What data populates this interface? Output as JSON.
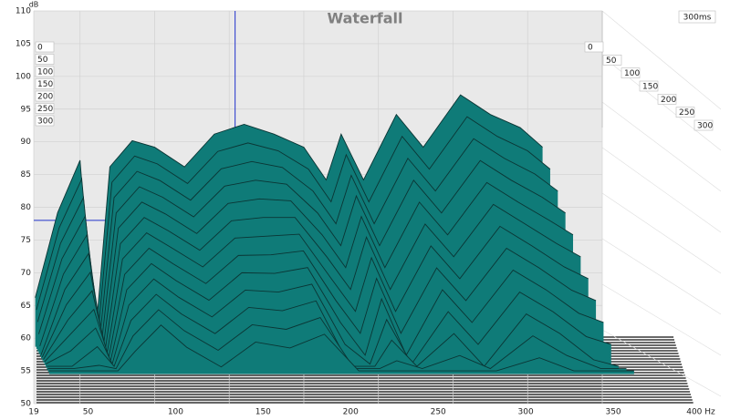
{
  "chart_data": {
    "type": "waterfall",
    "title": "Waterfall",
    "y_label": "dB",
    "time_range_label": "300ms",
    "x": [
      20,
      35,
      50,
      60,
      70,
      85,
      100,
      120,
      140,
      160,
      180,
      200,
      215,
      225,
      240,
      262,
      280,
      305,
      325,
      345,
      360
    ],
    "slices": [
      {
        "time": 0,
        "values": [
          62,
          75,
          83,
          55,
          82,
          86,
          85,
          82,
          87,
          88.5,
          87,
          85,
          80,
          87,
          80,
          90,
          85,
          93,
          90,
          88,
          85
        ]
      },
      {
        "time": 25,
        "values": [
          60.5,
          73,
          80.5,
          55,
          80,
          84,
          82.8,
          79.8,
          84.7,
          86,
          84.8,
          82,
          77,
          84.2,
          77,
          87,
          82,
          90,
          87,
          84.8,
          82
        ]
      },
      {
        "time": 50,
        "values": [
          59,
          71,
          78,
          55,
          78,
          82,
          80.6,
          77.6,
          82.4,
          83.5,
          82.6,
          79,
          74,
          81.4,
          74,
          84,
          79,
          87,
          84,
          81.6,
          79
        ]
      },
      {
        "time": 75,
        "values": [
          57.5,
          69,
          75.5,
          55,
          76,
          80,
          78.4,
          75.4,
          80.1,
          81,
          80.4,
          76,
          71,
          78.6,
          71,
          81,
          76,
          84,
          81,
          78.4,
          76
        ]
      },
      {
        "time": 100,
        "values": [
          56,
          67,
          73,
          55,
          74,
          78,
          76.2,
          73.2,
          77.8,
          78.5,
          78.2,
          73,
          68,
          75.8,
          68,
          78,
          73,
          81,
          78,
          75.2,
          73
        ]
      },
      {
        "time": 125,
        "values": [
          55,
          65,
          70.5,
          55,
          72,
          76,
          74,
          71,
          75.5,
          76,
          76,
          70,
          65,
          73,
          65,
          75,
          70,
          78,
          75,
          72,
          70
        ]
      },
      {
        "time": 150,
        "values": [
          55,
          63,
          68,
          55,
          70,
          74,
          71.8,
          68.8,
          73.2,
          73.5,
          73.8,
          67,
          62,
          70.2,
          62,
          72,
          67,
          75,
          72,
          68.8,
          67
        ]
      },
      {
        "time": 175,
        "values": [
          55,
          61,
          65.5,
          55,
          68,
          72,
          69.6,
          66.6,
          70.9,
          71,
          71.6,
          64,
          59,
          67.4,
          59,
          69,
          64,
          72,
          69,
          65.6,
          64
        ]
      },
      {
        "time": 200,
        "values": [
          55,
          59,
          63,
          55,
          66,
          70,
          67.4,
          64.4,
          68.6,
          68.5,
          69.4,
          61,
          56,
          64.6,
          56,
          66,
          61,
          69,
          66,
          62.4,
          61
        ]
      },
      {
        "time": 225,
        "values": [
          55,
          57,
          60.5,
          55,
          64,
          68,
          65.2,
          62.2,
          66.3,
          66,
          67.2,
          58,
          55,
          61.8,
          55,
          63,
          58,
          66,
          63,
          59.2,
          58
        ]
      },
      {
        "time": 250,
        "values": [
          55,
          55,
          58,
          55,
          62,
          66,
          63,
          60,
          64,
          63.5,
          65,
          55,
          55,
          59,
          55,
          60,
          55,
          63,
          60,
          56,
          55
        ]
      },
      {
        "time": 275,
        "values": [
          55,
          55,
          55.5,
          55,
          60,
          64,
          60.8,
          57.8,
          61.7,
          61,
          62.8,
          55,
          55,
          56.2,
          55,
          57,
          55,
          60,
          57,
          55,
          55
        ]
      },
      {
        "time": 300,
        "values": [
          55,
          55,
          55,
          55,
          58,
          62,
          58.6,
          55.6,
          59.4,
          58.5,
          60.6,
          55,
          55,
          55,
          55,
          55,
          55,
          57,
          55,
          55,
          55
        ]
      }
    ],
    "color": "#0f7b78",
    "line_color": "#0b3534",
    "xlim": [
      19,
      400
    ],
    "xticks": [
      19,
      50,
      100,
      150,
      200,
      250,
      300,
      350,
      {
        "value": 400,
        "label": "400 Hz"
      }
    ],
    "ylim": [
      50,
      110
    ],
    "yticks": [
      50,
      55,
      60,
      65,
      70,
      75,
      80,
      85,
      90,
      95,
      100,
      105,
      110
    ],
    "zlim": [
      0,
      300
    ],
    "zticks": [
      0,
      50,
      100,
      150,
      200,
      250,
      300
    ],
    "cursor": {
      "x": 134,
      "y": 78
    },
    "grid": true
  }
}
